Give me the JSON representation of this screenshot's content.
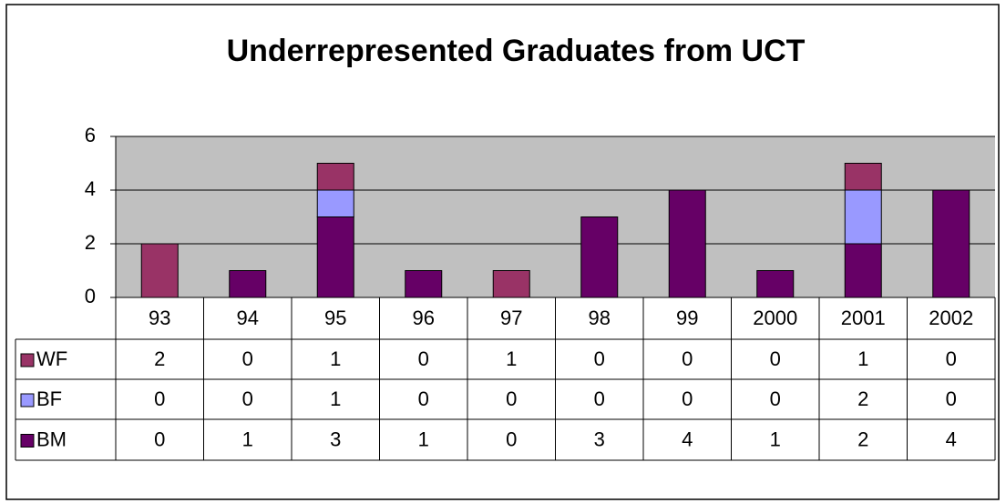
{
  "chart_data": {
    "type": "bar",
    "stacked": true,
    "title": "Underrepresented Graduates from UCT",
    "categories": [
      "93",
      "94",
      "95",
      "96",
      "97",
      "98",
      "99",
      "2000",
      "2001",
      "2002"
    ],
    "series": [
      {
        "name": "WF",
        "color": "#993366",
        "values": [
          2,
          0,
          1,
          0,
          1,
          0,
          0,
          0,
          1,
          0
        ]
      },
      {
        "name": "BF",
        "color": "#9999ff",
        "values": [
          0,
          0,
          1,
          0,
          0,
          0,
          0,
          0,
          2,
          0
        ]
      },
      {
        "name": "BM",
        "color": "#660066",
        "values": [
          0,
          1,
          3,
          1,
          0,
          3,
          4,
          1,
          2,
          4
        ]
      }
    ],
    "ylim": [
      0,
      6
    ],
    "yticks": [
      0,
      2,
      4,
      6
    ],
    "grid": true,
    "data_table": true
  }
}
